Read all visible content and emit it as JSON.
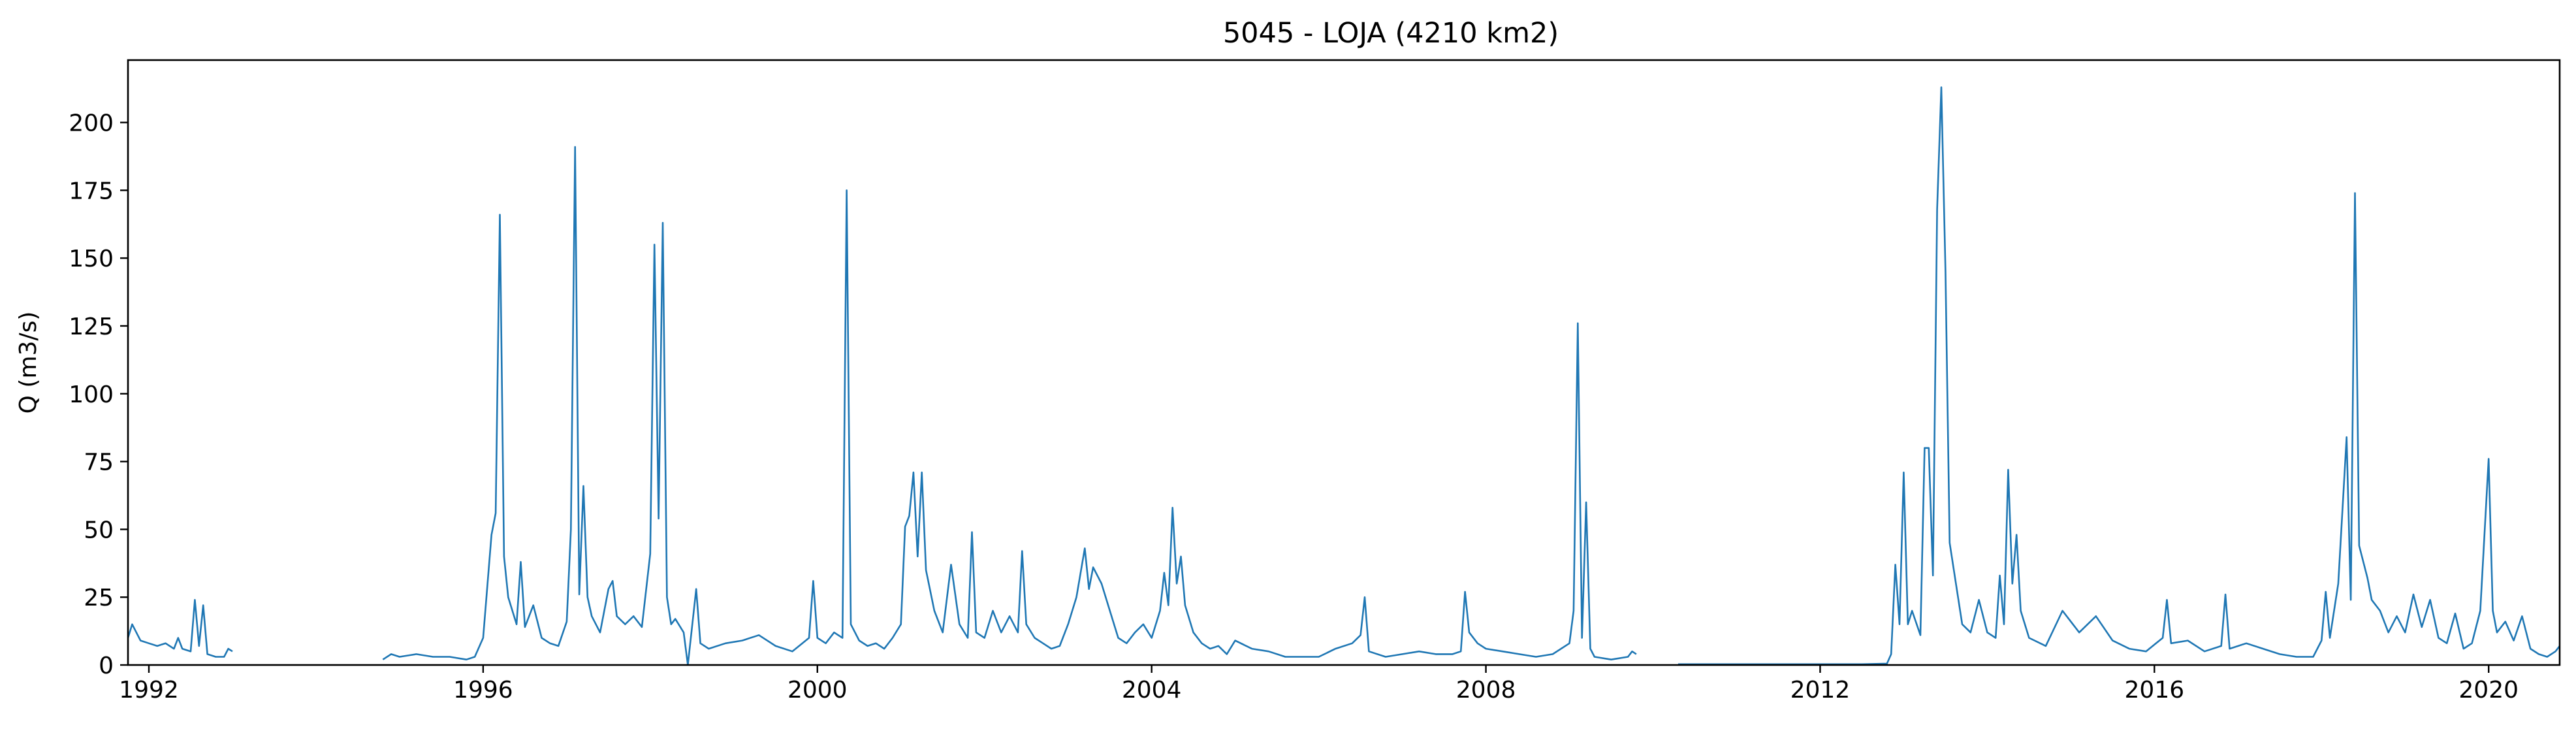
{
  "chart_data": {
    "type": "line",
    "title": "5045 - LOJA (4210 km2)",
    "xlabel": "",
    "ylabel": "Q (m3/s)",
    "xlim": [
      1991.75,
      2020.85
    ],
    "ylim": [
      0,
      223
    ],
    "x_ticks": [
      {
        "value": 1992,
        "label": "1992"
      },
      {
        "value": 1996,
        "label": "1996"
      },
      {
        "value": 2000,
        "label": "2000"
      },
      {
        "value": 2004,
        "label": "2004"
      },
      {
        "value": 2008,
        "label": "2008"
      },
      {
        "value": 2012,
        "label": "2012"
      },
      {
        "value": 2016,
        "label": "2016"
      },
      {
        "value": 2020,
        "label": "2020"
      }
    ],
    "y_ticks": [
      {
        "value": 0,
        "label": "0"
      },
      {
        "value": 25,
        "label": "25"
      },
      {
        "value": 50,
        "label": "50"
      },
      {
        "value": 75,
        "label": "75"
      },
      {
        "value": 100,
        "label": "100"
      },
      {
        "value": 125,
        "label": "125"
      },
      {
        "value": 150,
        "label": "150"
      },
      {
        "value": 175,
        "label": "175"
      },
      {
        "value": 200,
        "label": "200"
      }
    ],
    "grid": false,
    "line_color": "#1f77b4",
    "series": [
      {
        "segments": [
          [
            [
              1991.75,
              10
            ],
            [
              1991.8,
              15
            ],
            [
              1991.85,
              12
            ],
            [
              1991.9,
              9
            ],
            [
              1992.0,
              8
            ],
            [
              1992.1,
              7
            ],
            [
              1992.2,
              8
            ],
            [
              1992.3,
              6
            ],
            [
              1992.35,
              10
            ],
            [
              1992.4,
              6
            ],
            [
              1992.5,
              5
            ],
            [
              1992.55,
              24
            ],
            [
              1992.6,
              7
            ],
            [
              1992.65,
              22
            ],
            [
              1992.7,
              4
            ],
            [
              1992.8,
              3
            ],
            [
              1992.9,
              3
            ],
            [
              1992.95,
              6
            ],
            [
              1993.0,
              5
            ]
          ],
          [
            [
              1994.8,
              2
            ],
            [
              1994.9,
              4
            ],
            [
              1995.0,
              3
            ],
            [
              1995.2,
              4
            ],
            [
              1995.4,
              3
            ],
            [
              1995.6,
              3
            ],
            [
              1995.8,
              2
            ],
            [
              1995.9,
              3
            ],
            [
              1996.0,
              10
            ],
            [
              1996.05,
              29
            ],
            [
              1996.1,
              48
            ],
            [
              1996.15,
              56
            ],
            [
              1996.2,
              166
            ],
            [
              1996.25,
              40
            ],
            [
              1996.3,
              25
            ],
            [
              1996.4,
              15
            ],
            [
              1996.45,
              38
            ],
            [
              1996.5,
              14
            ],
            [
              1996.6,
              22
            ],
            [
              1996.7,
              10
            ],
            [
              1996.8,
              8
            ],
            [
              1996.9,
              7
            ],
            [
              1997.0,
              16
            ],
            [
              1997.05,
              50
            ],
            [
              1997.1,
              191
            ],
            [
              1997.15,
              26
            ],
            [
              1997.2,
              66
            ],
            [
              1997.25,
              25
            ],
            [
              1997.3,
              18
            ],
            [
              1997.4,
              12
            ],
            [
              1997.5,
              28
            ],
            [
              1997.55,
              31
            ],
            [
              1997.6,
              18
            ],
            [
              1997.7,
              15
            ],
            [
              1997.8,
              18
            ],
            [
              1997.9,
              14
            ],
            [
              1998.0,
              41
            ],
            [
              1998.05,
              155
            ],
            [
              1998.1,
              54
            ],
            [
              1998.15,
              163
            ],
            [
              1998.2,
              25
            ],
            [
              1998.25,
              15
            ],
            [
              1998.3,
              17
            ],
            [
              1998.4,
              12
            ],
            [
              1998.45,
              0
            ],
            [
              1998.5,
              14
            ],
            [
              1998.55,
              28
            ],
            [
              1998.6,
              8
            ],
            [
              1998.7,
              6
            ],
            [
              1998.9,
              8
            ],
            [
              1999.1,
              9
            ],
            [
              1999.3,
              11
            ],
            [
              1999.5,
              7
            ],
            [
              1999.7,
              5
            ],
            [
              1999.9,
              10
            ],
            [
              1999.95,
              31
            ],
            [
              2000.0,
              10
            ],
            [
              2000.1,
              8
            ],
            [
              2000.2,
              12
            ],
            [
              2000.3,
              10
            ],
            [
              2000.35,
              175
            ],
            [
              2000.4,
              15
            ],
            [
              2000.5,
              9
            ],
            [
              2000.6,
              7
            ],
            [
              2000.7,
              8
            ],
            [
              2000.8,
              6
            ],
            [
              2000.9,
              10
            ],
            [
              2001.0,
              15
            ],
            [
              2001.05,
              51
            ],
            [
              2001.1,
              55
            ],
            [
              2001.15,
              71
            ],
            [
              2001.2,
              40
            ],
            [
              2001.25,
              71
            ],
            [
              2001.3,
              35
            ],
            [
              2001.4,
              20
            ],
            [
              2001.5,
              12
            ],
            [
              2001.6,
              37
            ],
            [
              2001.7,
              15
            ],
            [
              2001.8,
              10
            ],
            [
              2001.85,
              49
            ],
            [
              2001.9,
              12
            ],
            [
              2002.0,
              10
            ],
            [
              2002.1,
              20
            ],
            [
              2002.2,
              12
            ],
            [
              2002.3,
              18
            ],
            [
              2002.4,
              12
            ],
            [
              2002.45,
              42
            ],
            [
              2002.5,
              15
            ],
            [
              2002.6,
              10
            ],
            [
              2002.7,
              8
            ],
            [
              2002.8,
              6
            ],
            [
              2002.9,
              7
            ],
            [
              2003.0,
              15
            ],
            [
              2003.1,
              25
            ],
            [
              2003.2,
              43
            ],
            [
              2003.25,
              28
            ],
            [
              2003.3,
              36
            ],
            [
              2003.4,
              30
            ],
            [
              2003.5,
              20
            ],
            [
              2003.6,
              10
            ],
            [
              2003.7,
              8
            ],
            [
              2003.8,
              12
            ],
            [
              2003.9,
              15
            ],
            [
              2004.0,
              10
            ],
            [
              2004.1,
              20
            ],
            [
              2004.15,
              34
            ],
            [
              2004.2,
              22
            ],
            [
              2004.25,
              58
            ],
            [
              2004.3,
              30
            ],
            [
              2004.35,
              40
            ],
            [
              2004.4,
              22
            ],
            [
              2004.5,
              12
            ],
            [
              2004.6,
              8
            ],
            [
              2004.7,
              6
            ],
            [
              2004.8,
              7
            ],
            [
              2004.9,
              4
            ],
            [
              2005.0,
              9
            ],
            [
              2005.2,
              6
            ],
            [
              2005.4,
              5
            ],
            [
              2005.6,
              3
            ],
            [
              2005.8,
              3
            ],
            [
              2006.0,
              3
            ],
            [
              2006.2,
              6
            ],
            [
              2006.4,
              8
            ],
            [
              2006.5,
              11
            ],
            [
              2006.55,
              25
            ],
            [
              2006.6,
              5
            ],
            [
              2006.8,
              3
            ],
            [
              2007.0,
              4
            ],
            [
              2007.2,
              5
            ],
            [
              2007.4,
              4
            ],
            [
              2007.6,
              4
            ],
            [
              2007.7,
              5
            ],
            [
              2007.75,
              27
            ],
            [
              2007.8,
              12
            ],
            [
              2007.9,
              8
            ],
            [
              2008.0,
              6
            ],
            [
              2008.2,
              5
            ],
            [
              2008.4,
              4
            ],
            [
              2008.6,
              3
            ],
            [
              2008.8,
              4
            ],
            [
              2009.0,
              8
            ],
            [
              2009.05,
              20
            ],
            [
              2009.1,
              126
            ],
            [
              2009.15,
              10
            ],
            [
              2009.2,
              60
            ],
            [
              2009.25,
              6
            ],
            [
              2009.3,
              3
            ],
            [
              2009.5,
              2
            ],
            [
              2009.7,
              3
            ],
            [
              2009.75,
              5
            ],
            [
              2009.8,
              4
            ]
          ],
          [
            [
              2010.3,
              0.3
            ],
            [
              2011.0,
              0.3
            ],
            [
              2011.5,
              0.3
            ],
            [
              2012.0,
              0.3
            ],
            [
              2012.5,
              0.3
            ],
            [
              2012.8,
              0.5
            ],
            [
              2012.85,
              4
            ],
            [
              2012.9,
              37
            ],
            [
              2012.95,
              15
            ],
            [
              2013.0,
              71
            ],
            [
              2013.05,
              15
            ],
            [
              2013.1,
              20
            ],
            [
              2013.2,
              11
            ],
            [
              2013.25,
              80
            ],
            [
              2013.3,
              80
            ],
            [
              2013.35,
              33
            ],
            [
              2013.4,
              168
            ],
            [
              2013.45,
              213
            ],
            [
              2013.5,
              145
            ],
            [
              2013.55,
              45
            ],
            [
              2013.6,
              35
            ],
            [
              2013.7,
              15
            ],
            [
              2013.8,
              12
            ],
            [
              2013.9,
              24
            ],
            [
              2014.0,
              12
            ],
            [
              2014.1,
              10
            ],
            [
              2014.15,
              33
            ],
            [
              2014.2,
              15
            ],
            [
              2014.25,
              72
            ],
            [
              2014.3,
              30
            ],
            [
              2014.35,
              48
            ],
            [
              2014.4,
              20
            ],
            [
              2014.5,
              10
            ],
            [
              2014.7,
              7
            ],
            [
              2014.9,
              20
            ],
            [
              2015.1,
              12
            ],
            [
              2015.3,
              18
            ],
            [
              2015.5,
              9
            ],
            [
              2015.7,
              6
            ],
            [
              2015.9,
              5
            ],
            [
              2016.1,
              10
            ],
            [
              2016.15,
              24
            ],
            [
              2016.2,
              8
            ],
            [
              2016.4,
              9
            ],
            [
              2016.6,
              5
            ],
            [
              2016.8,
              7
            ],
            [
              2016.85,
              26
            ],
            [
              2016.9,
              6
            ],
            [
              2017.1,
              8
            ],
            [
              2017.3,
              6
            ],
            [
              2017.5,
              4
            ],
            [
              2017.7,
              3
            ],
            [
              2017.9,
              3
            ],
            [
              2018.0,
              9
            ],
            [
              2018.05,
              27
            ],
            [
              2018.1,
              10
            ],
            [
              2018.2,
              30
            ],
            [
              2018.3,
              84
            ],
            [
              2018.35,
              24
            ],
            [
              2018.4,
              174
            ],
            [
              2018.45,
              44
            ],
            [
              2018.5,
              38
            ],
            [
              2018.55,
              32
            ],
            [
              2018.6,
              24
            ],
            [
              2018.7,
              20
            ],
            [
              2018.8,
              12
            ],
            [
              2018.9,
              18
            ],
            [
              2019.0,
              12
            ],
            [
              2019.1,
              26
            ],
            [
              2019.2,
              14
            ],
            [
              2019.3,
              24
            ],
            [
              2019.4,
              10
            ],
            [
              2019.5,
              8
            ],
            [
              2019.6,
              19
            ],
            [
              2019.7,
              6
            ],
            [
              2019.8,
              8
            ],
            [
              2019.9,
              20
            ],
            [
              2020.0,
              76
            ],
            [
              2020.05,
              20
            ],
            [
              2020.1,
              12
            ],
            [
              2020.2,
              16
            ],
            [
              2020.3,
              9
            ],
            [
              2020.4,
              18
            ],
            [
              2020.5,
              6
            ],
            [
              2020.6,
              4
            ],
            [
              2020.7,
              3
            ],
            [
              2020.8,
              5
            ],
            [
              2020.85,
              7
            ]
          ]
        ]
      }
    ]
  }
}
